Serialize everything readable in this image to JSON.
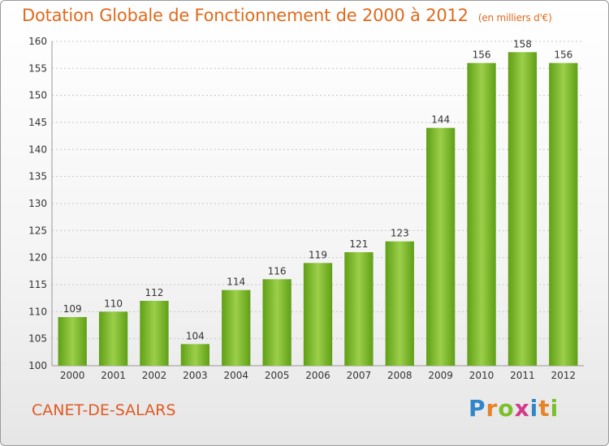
{
  "header": {
    "title": "Dotation Globale de Fonctionnement de 2000 à 2012",
    "unit": "(en milliers d'€)"
  },
  "footer": {
    "commune": "CANET-DE-SALARS",
    "logo_letters": [
      "P",
      "r",
      "o",
      "x",
      "i",
      "t",
      "i"
    ],
    "logo_colors": [
      "#2f86c8",
      "#e8832a",
      "#7cbf2a",
      "#d23a8a",
      "#2f86c8",
      "#e8832a",
      "#7cbf2a"
    ]
  },
  "chart_data": {
    "type": "bar",
    "categories": [
      "2000",
      "2001",
      "2002",
      "2003",
      "2004",
      "2005",
      "2006",
      "2007",
      "2008",
      "2009",
      "2010",
      "2011",
      "2012"
    ],
    "values": [
      109,
      110,
      112,
      104,
      114,
      116,
      119,
      121,
      123,
      144,
      156,
      158,
      156
    ],
    "ylim": [
      100,
      160
    ],
    "yticks": [
      100,
      105,
      110,
      115,
      120,
      125,
      130,
      135,
      140,
      145,
      150,
      155,
      160
    ],
    "grid": true,
    "colors": {
      "bar_top": "#9ccf4a",
      "bar_bottom": "#5f9f16",
      "grid": "#c8c8c8"
    }
  }
}
